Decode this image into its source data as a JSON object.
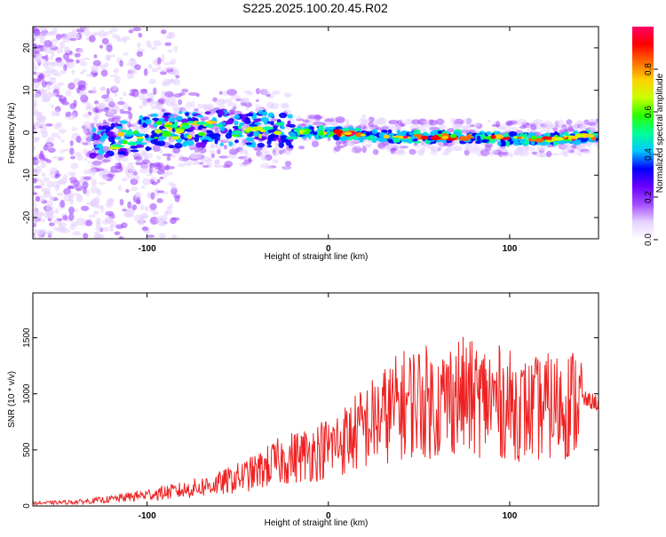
{
  "title": "S225.2025.100.20.45.R02",
  "chart_data": [
    {
      "type": "heatmap",
      "xlabel": "Height of straight line (km)",
      "ylabel": "Frequency (Hz)",
      "xlim": [
        -163,
        149
      ],
      "ylim": [
        -25,
        25
      ],
      "xticks": [
        -100,
        0,
        100
      ],
      "yticks": [
        -20,
        -10,
        0,
        10,
        20
      ],
      "grid": false,
      "colorbar": {
        "label": "Normalized spectral amplitude",
        "range": [
          0,
          1
        ],
        "ticks": [
          0.0,
          0.2,
          0.4,
          0.6,
          0.8
        ],
        "colors": [
          "#ffffff",
          "#e6d2ff",
          "#a24bff",
          "#6a00ff",
          "#0000ff",
          "#00c8ff",
          "#00ff96",
          "#2bff00",
          "#c8ff00",
          "#ffd200",
          "#ff6a00",
          "#ff0000",
          "#ff0066"
        ]
      },
      "ridge": {
        "description_points_x": [
          -120,
          -100,
          -80,
          -60,
          -40,
          -20,
          0,
          20,
          40,
          60,
          80,
          100,
          120,
          140
        ],
        "center_frequency": [
          -2,
          0,
          1,
          1,
          1,
          0.5,
          0,
          -0.5,
          -1,
          -1,
          -1,
          -1.5,
          -1.5,
          -1
        ]
      }
    },
    {
      "type": "line",
      "xlabel": "Height of straight line (km)",
      "ylabel": "SNR (10 * v/v)",
      "xlim": [
        -163,
        149
      ],
      "ylim": [
        0,
        1900
      ],
      "xticks": [
        -100,
        0,
        100
      ],
      "yticks": [
        0,
        500,
        1000,
        1500
      ],
      "grid": false,
      "series": [
        {
          "color": "#ee2222",
          "x": [
            -160,
            -150,
            -140,
            -130,
            -120,
            -110,
            -100,
            -90,
            -80,
            -70,
            -60,
            -50,
            -40,
            -30,
            -20,
            -10,
            0,
            10,
            20,
            30,
            40,
            50,
            60,
            70,
            80,
            90,
            100,
            110,
            120,
            130,
            140,
            149
          ],
          "y": [
            25,
            30,
            35,
            45,
            60,
            80,
            100,
            120,
            140,
            170,
            200,
            250,
            300,
            380,
            430,
            470,
            520,
            600,
            700,
            800,
            900,
            950,
            900,
            1000,
            950,
            950,
            900,
            850,
            880,
            900,
            950,
            920
          ]
        }
      ]
    }
  ],
  "colors": {
    "line": "#ee2222",
    "frame": "#000000",
    "background": "#ffffff"
  }
}
